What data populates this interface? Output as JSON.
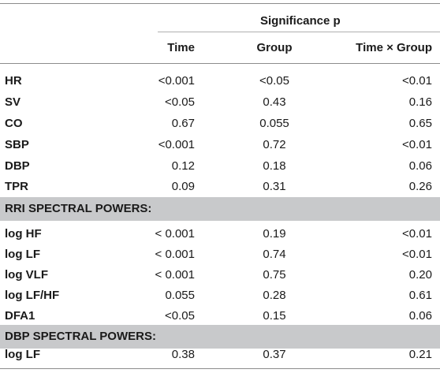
{
  "header": {
    "group_title": "Significance p",
    "columns": [
      "Time",
      "Group",
      "Time × Group"
    ]
  },
  "rows_top": [
    {
      "label": "HR",
      "time": "<0.001",
      "group": "<0.05",
      "tg": "<0.01"
    },
    {
      "label": "SV",
      "time": "<0.05",
      "group": "0.43",
      "tg": "0.16"
    },
    {
      "label": "CO",
      "time": "0.67",
      "group": "0.055",
      "tg": "0.65"
    },
    {
      "label": "SBP",
      "time": "<0.001",
      "group": "0.72",
      "tg": "<0.01"
    },
    {
      "label": "DBP",
      "time": "0.12",
      "group": "0.18",
      "tg": "0.06"
    },
    {
      "label": "TPR",
      "time": "0.09",
      "group": "0.31",
      "tg": "0.26"
    }
  ],
  "section1": "RRI SPECTRAL POWERS:",
  "rows_rri": [
    {
      "label": "log HF",
      "time": "< 0.001",
      "group": "0.19",
      "tg": "<0.01"
    },
    {
      "label": "log LF",
      "time": "< 0.001",
      "group": "0.74",
      "tg": "<0.01"
    },
    {
      "label": "log VLF",
      "time": "< 0.001",
      "group": "0.75",
      "tg": "0.20"
    },
    {
      "label": "log LF/HF",
      "time": "0.055",
      "group": "0.28",
      "tg": "0.61"
    },
    {
      "label": "DFA1",
      "time": "<0.05",
      "group": "0.15",
      "tg": "0.06"
    }
  ],
  "section2": "DBP SPECTRAL POWERS:",
  "rows_dbp": [
    {
      "label": "log LF",
      "time": "0.38",
      "group": "0.37",
      "tg": "0.21"
    }
  ]
}
